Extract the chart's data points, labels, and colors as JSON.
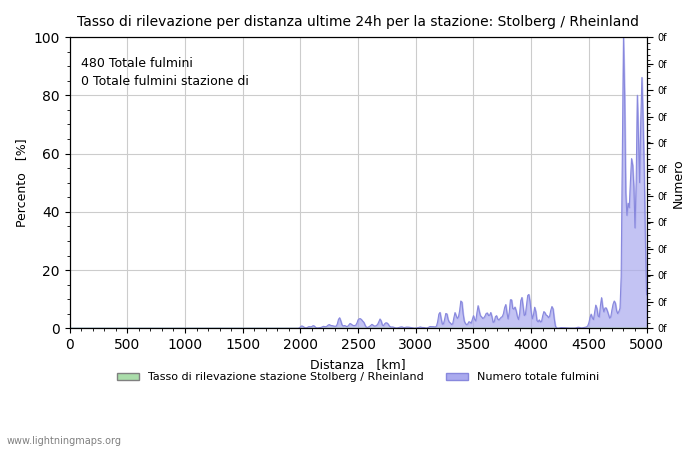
{
  "title": "Tasso di rilevazione per distanza ultime 24h per la stazione: Stolberg / Rheinland",
  "annotation_line1": "480 Totale fulmini",
  "annotation_line2": "0 Totale fulmini stazione di",
  "xlabel": "Distanza   [km]",
  "ylabel_left": "Percento   [%]",
  "ylabel_right": "Numero",
  "xlim": [
    0,
    5000
  ],
  "ylim_left": [
    0,
    100
  ],
  "x_ticks": [
    0,
    500,
    1000,
    1500,
    2000,
    2500,
    3000,
    3500,
    4000,
    4500,
    5000
  ],
  "y_ticks_left": [
    0,
    20,
    40,
    60,
    80,
    100
  ],
  "right_axis_ticks_labels": [
    "0f",
    "0f",
    "0f",
    "0f",
    "0f",
    "0f",
    "0f",
    "0f",
    "0f",
    "0f",
    "0f",
    "0f"
  ],
  "legend_label_green": "Tasso di rilevazione stazione Stolberg / Rheinland",
  "legend_label_blue": "Numero totale fulmini",
  "fill_color_blue": "#aaaaee",
  "line_color_blue": "#8888dd",
  "fill_color_green": "#aaddaa",
  "background_color": "#ffffff",
  "grid_color": "#cccccc",
  "watermark": "www.lightningmaps.org"
}
